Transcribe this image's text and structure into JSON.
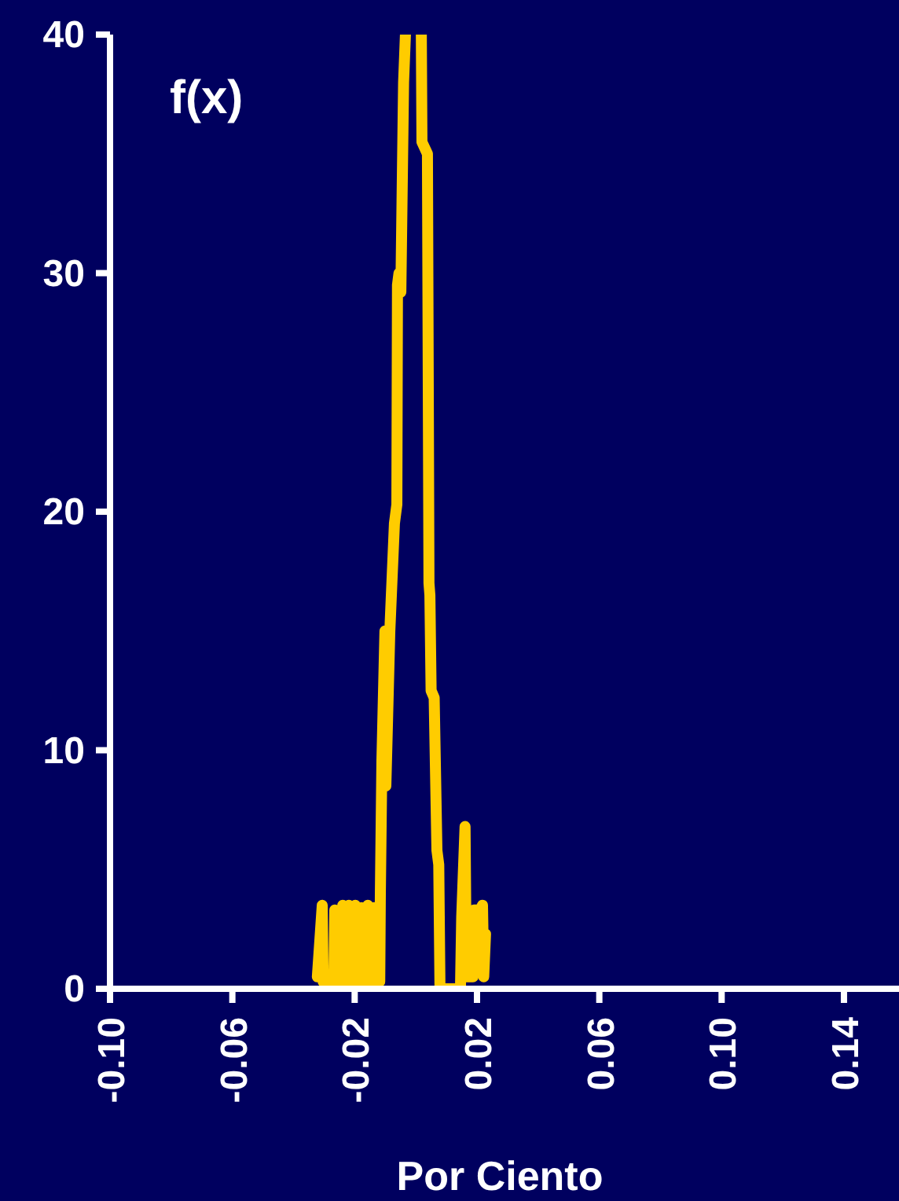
{
  "chart_data": {
    "type": "line",
    "xlabel": "Por Ciento",
    "ylabel": "f(x)",
    "xlim": [
      -0.1,
      0.158
    ],
    "ylim": [
      0,
      40
    ],
    "xticks": [
      {
        "value": -0.1,
        "label": "-0.10"
      },
      {
        "value": -0.06,
        "label": "-0.06"
      },
      {
        "value": -0.02,
        "label": "-0.02"
      },
      {
        "value": 0.02,
        "label": "0.02"
      },
      {
        "value": 0.06,
        "label": "0.06"
      },
      {
        "value": 0.1,
        "label": "0.10"
      },
      {
        "value": 0.14,
        "label": "0.14"
      }
    ],
    "yticks": [
      0,
      10,
      20,
      30,
      40
    ],
    "grid": false,
    "marker": "none",
    "line_style": "solid",
    "series": [
      {
        "color": "#ffcc00",
        "x": [
          -0.0322,
          -0.0306,
          -0.0303,
          -0.0268,
          -0.0265,
          -0.0262,
          -0.0242,
          -0.0239,
          -0.0236,
          -0.0222,
          -0.0219,
          -0.0216,
          -0.0201,
          -0.0198,
          -0.0195,
          -0.0181,
          -0.0178,
          -0.0175,
          -0.016,
          -0.0157,
          -0.0154,
          -0.014,
          -0.0137,
          -0.013,
          -0.0118,
          -0.0116,
          -0.0111,
          -0.0101,
          -0.0098,
          -0.0092,
          -0.0085,
          -0.007,
          -0.0062,
          -0.006,
          -0.0055,
          -0.0049,
          -0.004,
          -0.0034,
          0.0,
          0.0018,
          0.002,
          0.0038,
          0.0043,
          0.0046,
          0.005,
          0.006,
          0.0069,
          0.0075,
          0.0079,
          0.0146,
          0.015,
          0.0161,
          0.0165,
          0.0187,
          0.019,
          0.021,
          0.0218,
          0.0222,
          0.0228
        ],
        "values": [
          0.5,
          3.5,
          0.3,
          0.3,
          3.3,
          0.3,
          0.3,
          3.5,
          0.3,
          0.3,
          3.5,
          0.3,
          0.3,
          3.5,
          0.3,
          0.3,
          3.4,
          0.3,
          0.3,
          3.5,
          0.3,
          0.3,
          3.4,
          0.3,
          0.3,
          4.0,
          9.5,
          15.0,
          8.5,
          11.5,
          15,
          19.5,
          20.3,
          29.5,
          30,
          29.2,
          38,
          40,
          null,
          40,
          35.5,
          35,
          17,
          16.5,
          12.5,
          12.2,
          5.8,
          5.2,
          0,
          0,
          3,
          6.8,
          0.5,
          0.5,
          3.3,
          3.3,
          3.5,
          0.5,
          2.3
        ]
      }
    ]
  }
}
